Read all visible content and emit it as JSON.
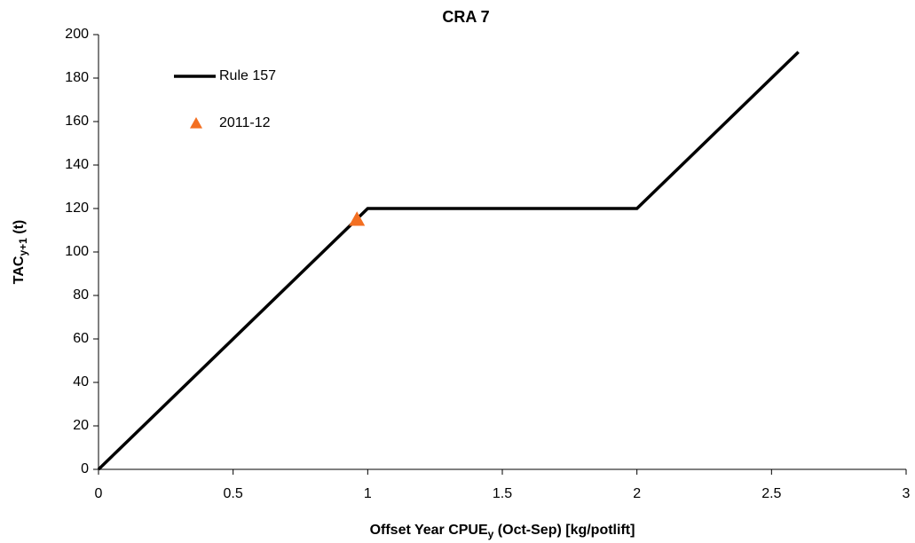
{
  "chart_data": {
    "type": "line",
    "title": "CRA 7",
    "xlabel": [
      "Offset Year CPUE",
      "y",
      " (Oct-Sep) [kg/potlift]"
    ],
    "ylabel": [
      "TAC",
      "y+1",
      " (t)"
    ],
    "xlim": [
      0,
      3
    ],
    "xticks": [
      0,
      0.5,
      1,
      1.5,
      2,
      2.5,
      3
    ],
    "ylim": [
      0,
      200
    ],
    "yticks": [
      0,
      20,
      40,
      60,
      80,
      100,
      120,
      140,
      160,
      180,
      200
    ],
    "grid": false,
    "legend": "upper left",
    "series": [
      {
        "name": "Rule 157",
        "type": "line",
        "color": "#000000",
        "x": [
          0,
          1,
          2,
          2.6
        ],
        "values": [
          0,
          120,
          120,
          192
        ]
      },
      {
        "name": "2011-12",
        "type": "scatter",
        "marker": "triangle",
        "color": "#f36f21",
        "x": [
          0.96
        ],
        "values": [
          115
        ]
      }
    ]
  }
}
